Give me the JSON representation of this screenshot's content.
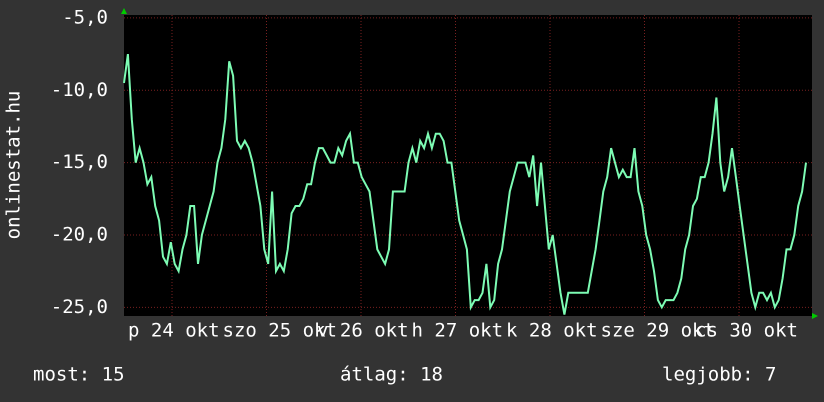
{
  "chart_data": {
    "type": "line",
    "y_axis_title": "onlinestat.hu",
    "x_labels": [
      "p 24 okt",
      "szo 25 okt",
      "v 26 okt",
      "h 27 okt",
      "k 28 okt",
      "sze 29 okt",
      "cs 30 okt"
    ],
    "series": [
      {
        "name": "onlinestat.hu",
        "color": "#7dfcb4",
        "values": [
          -9.5,
          -7.5,
          -12,
          -15,
          -14,
          -15,
          -16.5,
          -16,
          -18,
          -19,
          -21.5,
          -22,
          -20.5,
          -22,
          -22.5,
          -21,
          -20,
          -18,
          -18,
          -22,
          -20,
          -19,
          -18,
          -17,
          -15,
          -14,
          -12,
          -8,
          -9,
          -13.5,
          -14,
          -13.5,
          -14,
          -15,
          -16.5,
          -18,
          -21,
          -22,
          -17,
          -22.5,
          -22,
          -22.5,
          -21,
          -18.5,
          -18,
          -18,
          -17.5,
          -16.5,
          -16.5,
          -15,
          -14,
          -14,
          -14.5,
          -15,
          -15,
          -14,
          -14.5,
          -13.5,
          -13,
          -15,
          -15,
          -16,
          -16.5,
          -17,
          -19,
          -21,
          -21.5,
          -22,
          -21,
          -17,
          -17,
          -17,
          -17,
          -15,
          -14,
          -15,
          -13.5,
          -14,
          -13,
          -14,
          -13,
          -13,
          -13.5,
          -15,
          -15,
          -17,
          -19,
          -20,
          -21,
          -25,
          -24.5,
          -24.5,
          -24,
          -22,
          -25,
          -24.5,
          -22,
          -21,
          -19,
          -17,
          -16,
          -15,
          -15,
          -15,
          -16,
          -14.5,
          -18,
          -15,
          -18,
          -21,
          -20,
          -22,
          -24,
          -25.5,
          -24,
          -24,
          -24,
          -24,
          -24,
          -24,
          -22.5,
          -21,
          -19,
          -17,
          -16,
          -14,
          -15,
          -16,
          -15.5,
          -16,
          -16,
          -14,
          -17,
          -18,
          -20,
          -21,
          -22.5,
          -24.5,
          -25,
          -24.5,
          -24.5,
          -24.5,
          -24,
          -23,
          -21,
          -20,
          -18,
          -17.5,
          -16,
          -16,
          -15,
          -13,
          -10.5,
          -15,
          -17,
          -16,
          -14,
          -16,
          -18,
          -20,
          -22,
          -24,
          -25,
          -24,
          -24,
          -24.5,
          -24,
          -25,
          -24.5,
          -23,
          -21,
          -21,
          -20,
          -18,
          -17,
          -15
        ]
      }
    ],
    "ylim": [
      -25.6,
      -4.8
    ],
    "yticks": [
      {
        "value": -5,
        "label": "-5,0"
      },
      {
        "value": -10,
        "label": "-10,0"
      },
      {
        "value": -15,
        "label": "-15,0"
      },
      {
        "value": -20,
        "label": "-20,0"
      },
      {
        "value": -25,
        "label": "-25,0"
      }
    ],
    "grid": true
  },
  "footer": {
    "current": "most: 15",
    "average": "átlag: 18",
    "best": "legjobb: 7"
  }
}
